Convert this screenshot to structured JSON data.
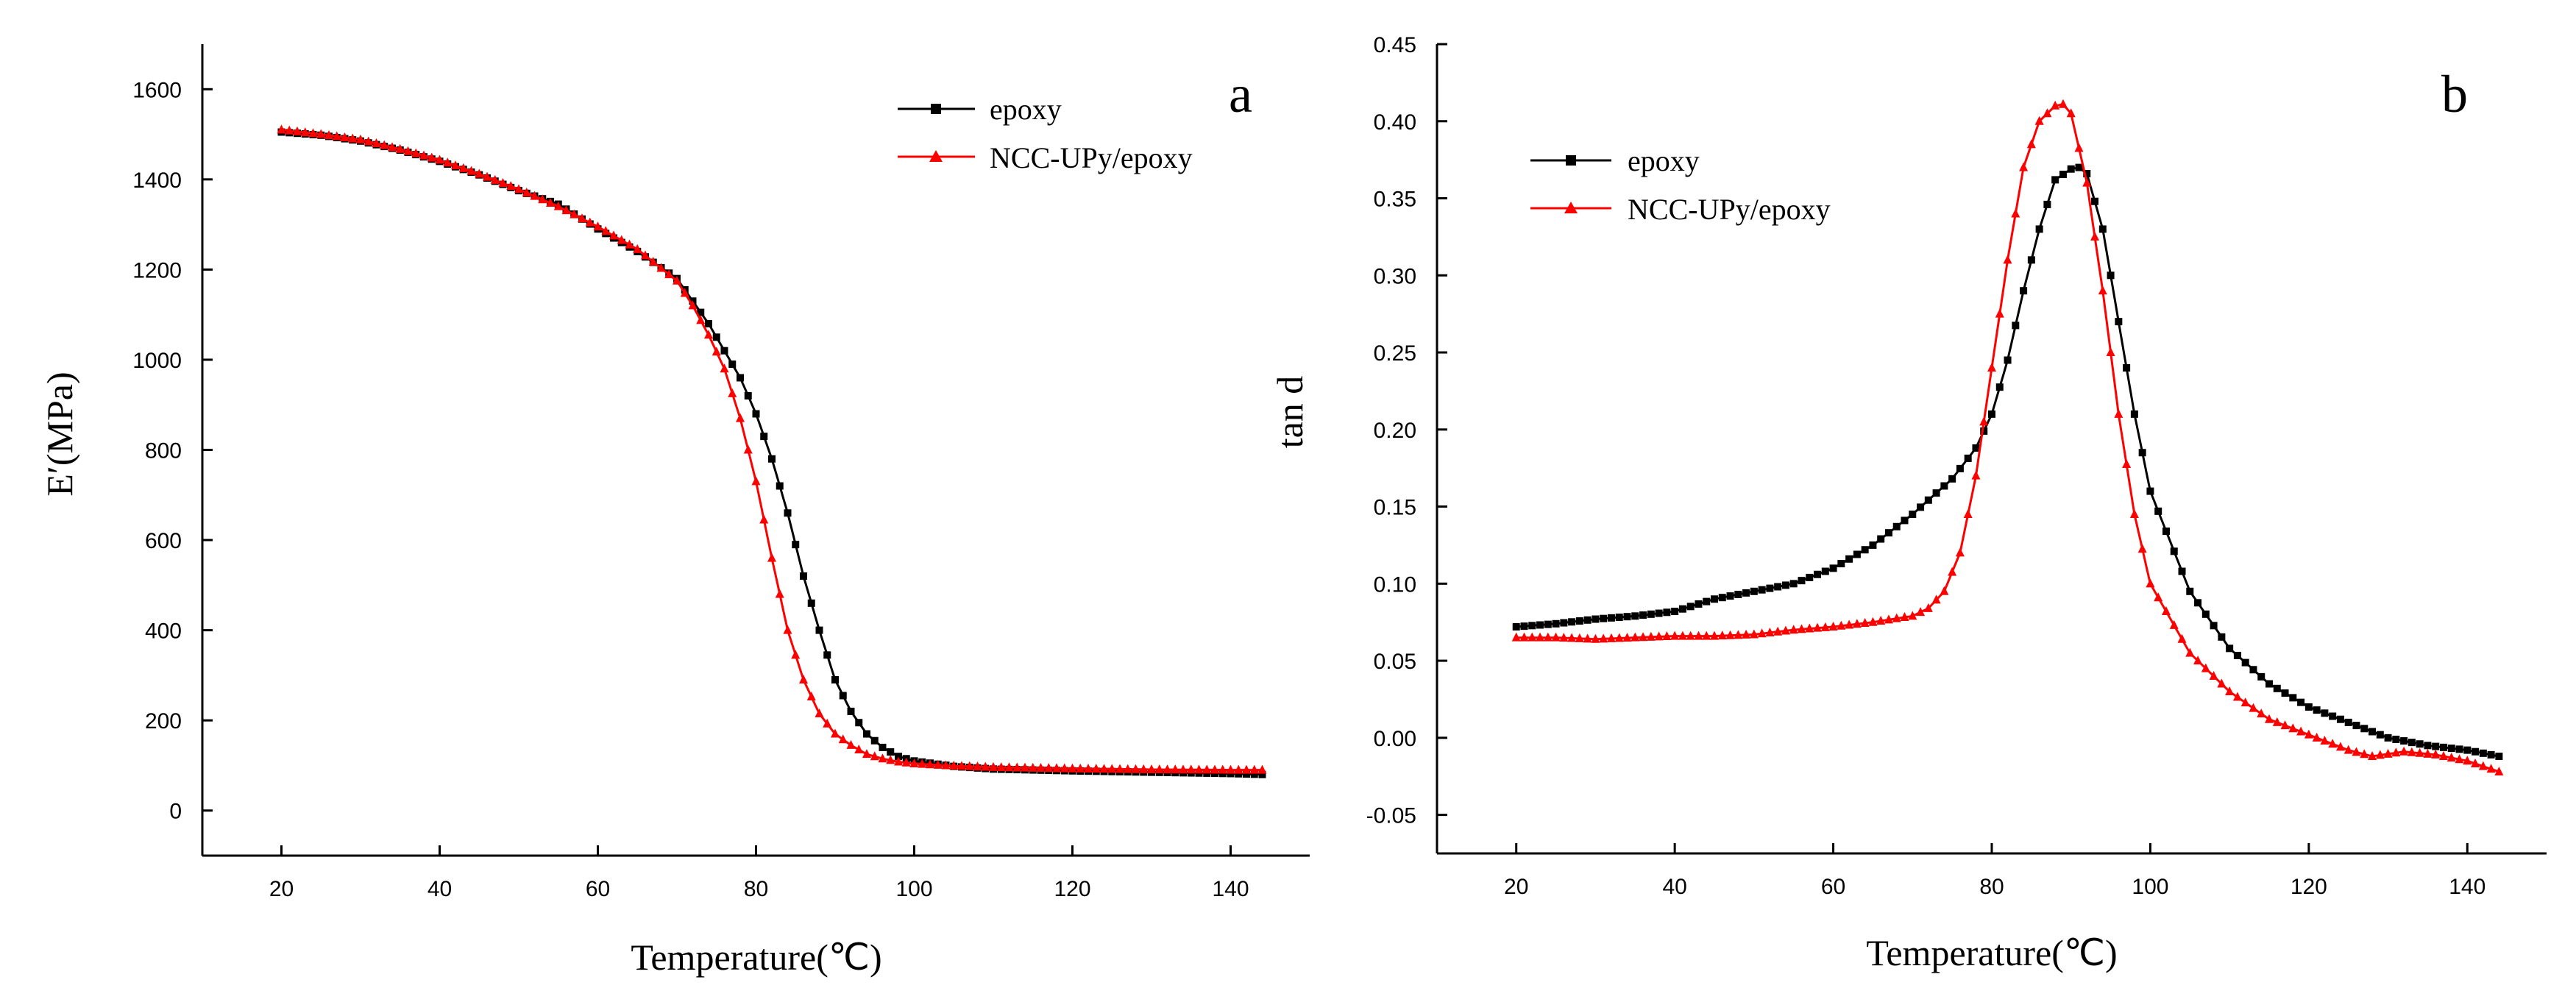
{
  "chart_data": [
    {
      "panel": "a",
      "type": "line",
      "xlabel": "Temperature(℃)",
      "ylabel": "E′(MPa)",
      "xlim": [
        10,
        150
      ],
      "ylim": [
        -100,
        1700
      ],
      "xticks": [
        20,
        40,
        60,
        80,
        100,
        120,
        140
      ],
      "yticks": [
        0,
        200,
        400,
        600,
        800,
        1000,
        1200,
        1400,
        1600
      ],
      "legend_position": "top-right",
      "series": [
        {
          "name": "epoxy",
          "color": "#000000",
          "marker": "square",
          "x": [
            20,
            25,
            30,
            35,
            40,
            45,
            50,
            55,
            60,
            65,
            70,
            72,
            74,
            76,
            78,
            80,
            82,
            84,
            86,
            88,
            90,
            92,
            94,
            96,
            98,
            100,
            105,
            110,
            120,
            130,
            140,
            144
          ],
          "y": [
            1505,
            1498,
            1485,
            1465,
            1440,
            1410,
            1375,
            1345,
            1290,
            1240,
            1180,
            1130,
            1080,
            1020,
            960,
            880,
            780,
            660,
            520,
            400,
            290,
            220,
            170,
            140,
            120,
            110,
            98,
            92,
            88,
            85,
            82,
            80
          ]
        },
        {
          "name": "NCC-UPy/epoxy",
          "color": "#ff0000",
          "marker": "triangle",
          "x": [
            20,
            25,
            30,
            35,
            40,
            45,
            50,
            55,
            60,
            65,
            70,
            72,
            74,
            76,
            78,
            80,
            82,
            84,
            86,
            88,
            90,
            92,
            94,
            96,
            98,
            100,
            105,
            110,
            120,
            130,
            140,
            144
          ],
          "y": [
            1510,
            1500,
            1488,
            1467,
            1443,
            1412,
            1378,
            1340,
            1295,
            1245,
            1175,
            1120,
            1055,
            980,
            870,
            730,
            560,
            400,
            290,
            215,
            170,
            145,
            125,
            115,
            108,
            104,
            99,
            96,
            93,
            91,
            90,
            90
          ]
        }
      ]
    },
    {
      "panel": "b",
      "type": "line",
      "xlabel": "Temperature(℃)",
      "ylabel": "tan d",
      "xlim": [
        10,
        150
      ],
      "ylim": [
        -0.075,
        0.45
      ],
      "xticks": [
        20,
        40,
        60,
        80,
        100,
        120,
        140
      ],
      "yticks": [
        -0.05,
        0.0,
        0.05,
        0.1,
        0.15,
        0.2,
        0.25,
        0.3,
        0.35,
        0.4,
        0.45
      ],
      "legend_position": "top-left",
      "series": [
        {
          "name": "epoxy",
          "color": "#000000",
          "marker": "square",
          "x": [
            20,
            25,
            30,
            35,
            40,
            45,
            50,
            55,
            60,
            65,
            70,
            75,
            78,
            80,
            82,
            84,
            86,
            88,
            90,
            91,
            92,
            94,
            96,
            98,
            100,
            105,
            110,
            115,
            120,
            125,
            130,
            135,
            140,
            144
          ],
          "y": [
            0.072,
            0.074,
            0.077,
            0.079,
            0.082,
            0.09,
            0.095,
            0.1,
            0.11,
            0.125,
            0.145,
            0.168,
            0.188,
            0.21,
            0.245,
            0.29,
            0.33,
            0.362,
            0.369,
            0.37,
            0.366,
            0.33,
            0.27,
            0.21,
            0.16,
            0.095,
            0.058,
            0.035,
            0.02,
            0.01,
            0.0,
            -0.005,
            -0.008,
            -0.012
          ]
        },
        {
          "name": "NCC-UPy/epoxy",
          "color": "#ff0000",
          "marker": "triangle",
          "x": [
            20,
            25,
            30,
            35,
            40,
            45,
            50,
            55,
            60,
            65,
            70,
            72,
            74,
            76,
            78,
            80,
            82,
            84,
            86,
            88,
            89,
            90,
            92,
            94,
            96,
            98,
            100,
            105,
            110,
            115,
            120,
            125,
            128,
            132,
            136,
            140,
            144
          ],
          "y": [
            0.065,
            0.065,
            0.064,
            0.065,
            0.066,
            0.066,
            0.067,
            0.07,
            0.072,
            0.075,
            0.079,
            0.084,
            0.095,
            0.12,
            0.17,
            0.24,
            0.31,
            0.37,
            0.4,
            0.41,
            0.411,
            0.405,
            0.36,
            0.29,
            0.21,
            0.145,
            0.1,
            0.055,
            0.03,
            0.012,
            0.002,
            -0.008,
            -0.012,
            -0.009,
            -0.011,
            -0.015,
            -0.022
          ]
        }
      ]
    }
  ]
}
